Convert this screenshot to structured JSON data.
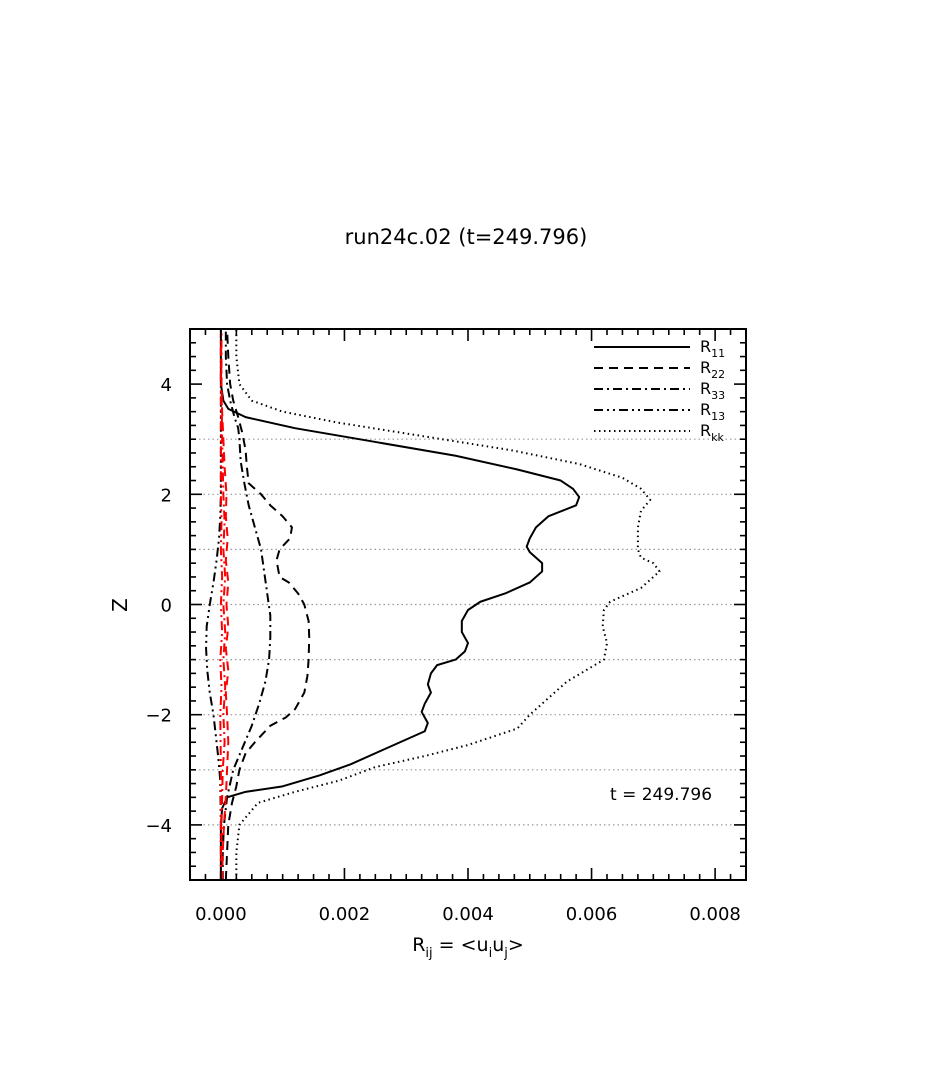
{
  "chart_data": {
    "type": "line",
    "title": "run24c.02 (t=249.796)",
    "xlabel": {
      "base": "R",
      "sub": "ij",
      "rest": " = <u",
      "s1": "i",
      "mid": "u",
      "s2": "j",
      "end": ">"
    },
    "ylabel": "Z",
    "xlim": [
      -0.0005,
      0.0085
    ],
    "ylim": [
      -5,
      5
    ],
    "xticks": [
      {
        "value": 0.0,
        "label": "0.000"
      },
      {
        "value": 0.002,
        "label": "0.002"
      },
      {
        "value": 0.004,
        "label": "0.004"
      },
      {
        "value": 0.006,
        "label": "0.006"
      },
      {
        "value": 0.008,
        "label": "0.008"
      }
    ],
    "yticks": [
      {
        "value": -4,
        "label": "−4"
      },
      {
        "value": -2,
        "label": "−2"
      },
      {
        "value": 0,
        "label": "0"
      },
      {
        "value": 2,
        "label": "2"
      },
      {
        "value": 4,
        "label": "4"
      }
    ],
    "grid": "horizontal dotted at z = -4,-3,-2,-1,0,1,2,3",
    "legend_position": "top-right",
    "annotation": "t = 249.796",
    "series": [
      {
        "name": "R11",
        "label_base": "R",
        "label_sub": "11",
        "style": "solid",
        "color": "#000000",
        "points": [
          [
            0.0,
            -5
          ],
          [
            0.0,
            -4.0
          ],
          [
            2e-05,
            -3.7
          ],
          [
            0.0001,
            -3.5
          ],
          [
            0.0004,
            -3.4
          ],
          [
            0.001,
            -3.3
          ],
          [
            0.0016,
            -3.1
          ],
          [
            0.0021,
            -2.9
          ],
          [
            0.0026,
            -2.65
          ],
          [
            0.003,
            -2.45
          ],
          [
            0.0033,
            -2.3
          ],
          [
            0.00335,
            -2.15
          ],
          [
            0.0033,
            -2.05
          ],
          [
            0.00325,
            -1.95
          ],
          [
            0.0033,
            -1.8
          ],
          [
            0.0034,
            -1.6
          ],
          [
            0.00335,
            -1.45
          ],
          [
            0.0034,
            -1.25
          ],
          [
            0.0035,
            -1.1
          ],
          [
            0.0038,
            -1.0
          ],
          [
            0.00395,
            -0.85
          ],
          [
            0.004,
            -0.7
          ],
          [
            0.0039,
            -0.5
          ],
          [
            0.0039,
            -0.3
          ],
          [
            0.004,
            -0.1
          ],
          [
            0.0042,
            0.05
          ],
          [
            0.0046,
            0.2
          ],
          [
            0.005,
            0.4
          ],
          [
            0.0052,
            0.6
          ],
          [
            0.0052,
            0.75
          ],
          [
            0.005,
            0.95
          ],
          [
            0.00495,
            1.05
          ],
          [
            0.005,
            1.2
          ],
          [
            0.0051,
            1.4
          ],
          [
            0.0053,
            1.6
          ],
          [
            0.00575,
            1.8
          ],
          [
            0.0058,
            1.95
          ],
          [
            0.0057,
            2.1
          ],
          [
            0.0055,
            2.25
          ],
          [
            0.0048,
            2.45
          ],
          [
            0.0038,
            2.7
          ],
          [
            0.0025,
            2.95
          ],
          [
            0.0012,
            3.2
          ],
          [
            0.0004,
            3.4
          ],
          [
            0.00012,
            3.55
          ],
          [
            4e-05,
            3.7
          ],
          [
            0.0,
            4.0
          ],
          [
            0.0,
            5
          ]
        ]
      },
      {
        "name": "R22",
        "label_base": "R",
        "label_sub": "22",
        "style": "dashed",
        "color": "#000000",
        "points": [
          [
            8e-05,
            -5
          ],
          [
            0.0001,
            -4.5
          ],
          [
            0.00012,
            -4.0
          ],
          [
            0.00018,
            -3.6
          ],
          [
            0.00025,
            -3.3
          ],
          [
            0.0003,
            -3.0
          ],
          [
            0.0004,
            -2.7
          ],
          [
            0.00055,
            -2.5
          ],
          [
            0.0008,
            -2.2
          ],
          [
            0.00105,
            -2.05
          ],
          [
            0.0012,
            -1.9
          ],
          [
            0.00135,
            -1.6
          ],
          [
            0.0014,
            -1.3
          ],
          [
            0.00142,
            -1.0
          ],
          [
            0.00143,
            -0.6
          ],
          [
            0.00142,
            -0.3
          ],
          [
            0.00135,
            0.0
          ],
          [
            0.00125,
            0.2
          ],
          [
            0.0011,
            0.4
          ],
          [
            0.00095,
            0.5
          ],
          [
            0.0009,
            0.8
          ],
          [
            0.00095,
            1.0
          ],
          [
            0.00112,
            1.2
          ],
          [
            0.00115,
            1.4
          ],
          [
            0.001,
            1.6
          ],
          [
            0.0008,
            1.8
          ],
          [
            0.00065,
            2.0
          ],
          [
            0.00045,
            2.2
          ],
          [
            0.00042,
            2.5
          ],
          [
            0.0004,
            2.8
          ],
          [
            0.00035,
            3.1
          ],
          [
            0.00028,
            3.4
          ],
          [
            0.0002,
            3.7
          ],
          [
            0.00015,
            4.0
          ],
          [
            0.00012,
            4.5
          ],
          [
            0.0001,
            5
          ]
        ]
      },
      {
        "name": "R33",
        "label_base": "R",
        "label_sub": "33",
        "style": "dashdot",
        "color": "#000000",
        "points": [
          [
            3e-05,
            -5
          ],
          [
            3e-05,
            -4.5
          ],
          [
            5e-05,
            -4.0
          ],
          [
            0.0001,
            -3.5
          ],
          [
            0.0002,
            -3.0
          ],
          [
            0.00035,
            -2.6
          ],
          [
            0.0005,
            -2.2
          ],
          [
            0.00062,
            -1.8
          ],
          [
            0.00072,
            -1.4
          ],
          [
            0.00078,
            -1.0
          ],
          [
            0.0008,
            -0.6
          ],
          [
            0.0008,
            -0.2
          ],
          [
            0.00075,
            0.2
          ],
          [
            0.0007,
            0.6
          ],
          [
            0.00065,
            1.0
          ],
          [
            0.00055,
            1.4
          ],
          [
            0.00045,
            1.8
          ],
          [
            0.00038,
            2.2
          ],
          [
            0.00032,
            2.6
          ],
          [
            0.0003,
            3.0
          ],
          [
            0.00028,
            3.2
          ],
          [
            0.00022,
            3.4
          ],
          [
            0.00015,
            3.7
          ],
          [
            0.0001,
            4.0
          ],
          [
            8e-05,
            4.5
          ],
          [
            8e-05,
            5
          ]
        ]
      },
      {
        "name": "R13",
        "label_base": "R",
        "label_sub": "13",
        "style": "dashdotdot",
        "color": "#000000",
        "points": [
          [
            0.0,
            -5
          ],
          [
            0.0,
            -4.0
          ],
          [
            -1e-05,
            -3.2
          ],
          [
            -4e-05,
            -2.8
          ],
          [
            -8e-05,
            -2.4
          ],
          [
            -0.00012,
            -2.0
          ],
          [
            -0.00018,
            -1.6
          ],
          [
            -0.00022,
            -1.2
          ],
          [
            -0.00024,
            -0.8
          ],
          [
            -0.00023,
            -0.4
          ],
          [
            -0.00018,
            0.0
          ],
          [
            -0.00012,
            0.4
          ],
          [
            -7e-05,
            0.8
          ],
          [
            -3e-05,
            1.2
          ],
          [
            -1e-05,
            1.6
          ],
          [
            0.0,
            2.0
          ],
          [
            0.0,
            5
          ]
        ]
      },
      {
        "name": "Rkk",
        "label_base": "R",
        "label_sub": "kk",
        "style": "dotted",
        "color": "#000000",
        "points": [
          [
            0.00025,
            -5
          ],
          [
            0.00025,
            -4.5
          ],
          [
            0.0003,
            -4.0
          ],
          [
            0.0006,
            -3.6
          ],
          [
            0.0012,
            -3.4
          ],
          [
            0.0019,
            -3.2
          ],
          [
            0.0025,
            -2.95
          ],
          [
            0.0033,
            -2.75
          ],
          [
            0.004,
            -2.55
          ],
          [
            0.0044,
            -2.4
          ],
          [
            0.0048,
            -2.25
          ],
          [
            0.005,
            -2.0
          ],
          [
            0.0052,
            -1.8
          ],
          [
            0.0054,
            -1.6
          ],
          [
            0.0056,
            -1.4
          ],
          [
            0.0059,
            -1.2
          ],
          [
            0.0062,
            -1.0
          ],
          [
            0.00625,
            -0.7
          ],
          [
            0.00618,
            -0.4
          ],
          [
            0.0062,
            -0.1
          ],
          [
            0.0063,
            0.05
          ],
          [
            0.0068,
            0.3
          ],
          [
            0.0071,
            0.6
          ],
          [
            0.007,
            0.75
          ],
          [
            0.0068,
            0.85
          ],
          [
            0.00675,
            1.0
          ],
          [
            0.00675,
            1.4
          ],
          [
            0.0068,
            1.7
          ],
          [
            0.00695,
            1.9
          ],
          [
            0.0068,
            2.1
          ],
          [
            0.0065,
            2.3
          ],
          [
            0.0058,
            2.55
          ],
          [
            0.0047,
            2.8
          ],
          [
            0.0033,
            3.05
          ],
          [
            0.0019,
            3.3
          ],
          [
            0.001,
            3.5
          ],
          [
            0.0005,
            3.7
          ],
          [
            0.0003,
            4.0
          ],
          [
            0.00025,
            4.5
          ],
          [
            0.00025,
            5
          ]
        ]
      },
      {
        "name": "",
        "style": "dashed",
        "color": "#ff0000",
        "points": [
          [
            2e-05,
            -5
          ],
          [
            3e-05,
            -4.5
          ],
          [
            5e-05,
            -4.0
          ],
          [
            8e-05,
            -3.5
          ],
          [
            0.0001,
            -3.0
          ],
          [
            0.00012,
            -2.5
          ],
          [
            0.0001,
            -2.0
          ],
          [
            8e-05,
            -1.6
          ],
          [
            0.00012,
            -1.2
          ],
          [
            8e-05,
            -0.8
          ],
          [
            0.00012,
            -0.4
          ],
          [
            9e-05,
            0.0
          ],
          [
            0.00012,
            0.4
          ],
          [
            8e-05,
            0.8
          ],
          [
            0.00011,
            1.2
          ],
          [
            8e-05,
            1.6
          ],
          [
            9e-05,
            2.0
          ],
          [
            6e-05,
            2.5
          ],
          [
            4e-05,
            3.0
          ],
          [
            2e-05,
            3.5
          ],
          [
            1e-05,
            4.0
          ],
          [
            0.0,
            5
          ]
        ]
      },
      {
        "name": "",
        "style": "dashdot",
        "color": "#ff0000",
        "points": [
          [
            1e-05,
            -5
          ],
          [
            1e-05,
            -4.0
          ],
          [
            3e-05,
            -3.0
          ],
          [
            6e-05,
            -2.5
          ],
          [
            4e-05,
            -2.0
          ],
          [
            7e-05,
            -1.5
          ],
          [
            4e-05,
            -1.0
          ],
          [
            7e-05,
            -0.5
          ],
          [
            4e-05,
            0.0
          ],
          [
            7e-05,
            0.5
          ],
          [
            4e-05,
            1.0
          ],
          [
            6e-05,
            1.5
          ],
          [
            4e-05,
            2.0
          ],
          [
            3e-05,
            2.5
          ],
          [
            2e-05,
            3.0
          ],
          [
            1e-05,
            4.0
          ],
          [
            1e-05,
            5
          ]
        ]
      },
      {
        "name": "",
        "style": "dashdotdot",
        "color": "#ff0000",
        "points": [
          [
            0.0,
            -5
          ],
          [
            0.0,
            -3.0
          ],
          [
            -1e-05,
            -2.0
          ],
          [
            1e-05,
            -1.5
          ],
          [
            -1e-05,
            -1.0
          ],
          [
            2e-05,
            -0.5
          ],
          [
            0.0,
            0.0
          ],
          [
            2e-05,
            0.5
          ],
          [
            0.0,
            1.0
          ],
          [
            1e-05,
            1.5
          ],
          [
            0.0,
            2.0
          ],
          [
            0.0,
            5
          ]
        ]
      }
    ]
  }
}
